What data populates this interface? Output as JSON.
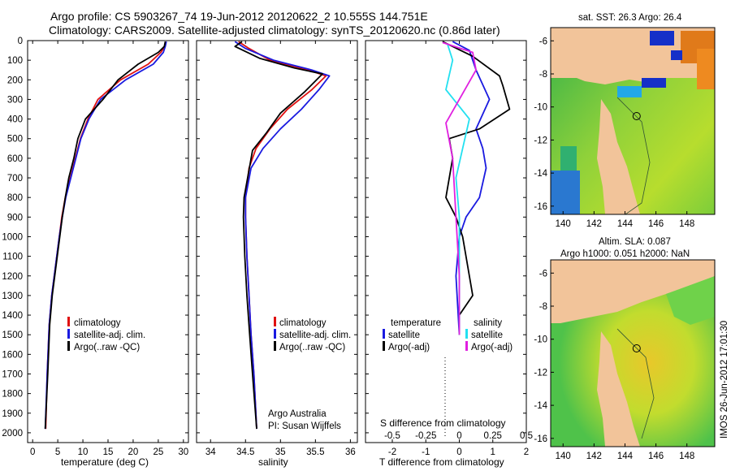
{
  "header": {
    "title_line1": "Argo profile: CS 5903267_74 19-Jun-2012 20120622_2 10.555S 144.751E",
    "title_line2": "Climatology: CARS2009. Satellite-adjusted climatology: synTS_20120620.nc (0.86d later)"
  },
  "colors": {
    "climatology": "#e01010",
    "satellite": "#1a1ae0",
    "argo": "#000000",
    "sal_satellite": "#22e0f0",
    "sal_argo": "#e020e0",
    "land": "#f2c49a"
  },
  "chart_data": [
    {
      "type": "line",
      "name": "temperature-profile",
      "xlabel": "temperature (deg C)",
      "xlim": [
        -1,
        31
      ],
      "ylim": [
        2050,
        0
      ],
      "xticks": [
        "0",
        "5",
        "10",
        "15",
        "20",
        "25",
        "30"
      ],
      "yticks": [
        "0",
        "100",
        "200",
        "300",
        "400",
        "500",
        "600",
        "700",
        "800",
        "900",
        "1000",
        "1100",
        "1200",
        "1300",
        "1400",
        "1500",
        "1600",
        "1700",
        "1800",
        "1900",
        "2000"
      ],
      "series": [
        {
          "name": "climatology",
          "color": "#e01010",
          "x": [
            26.5,
            26.3,
            25.5,
            23.0,
            17.5,
            13.0,
            11.0,
            9.5,
            8.5,
            7.5,
            6.5,
            5.8,
            5.3,
            4.8,
            4.3,
            3.8,
            3.3,
            2.9,
            2.6
          ],
          "y": [
            5,
            30,
            60,
            120,
            200,
            300,
            400,
            500,
            600,
            700,
            800,
            900,
            1000,
            1100,
            1200,
            1300,
            1450,
            1700,
            1980
          ]
        },
        {
          "name": "satellite-adj. clim.",
          "color": "#1a1ae0",
          "x": [
            26.6,
            26.4,
            26.0,
            24.0,
            18.5,
            13.5,
            11.2,
            9.6,
            8.6,
            7.6,
            6.6,
            5.9,
            5.3,
            4.8,
            4.3,
            3.8,
            3.3,
            2.9,
            2.5
          ],
          "y": [
            5,
            30,
            60,
            120,
            200,
            300,
            400,
            500,
            600,
            700,
            800,
            900,
            1000,
            1100,
            1200,
            1300,
            1450,
            1700,
            1980
          ]
        },
        {
          "name": "Argo(..raw -QC)",
          "color": "#000000",
          "x": [
            26.4,
            26.2,
            25.0,
            21.0,
            17.0,
            14.0,
            10.5,
            9.0,
            8.2,
            7.2,
            6.5,
            5.9,
            5.4,
            4.9,
            4.4,
            3.9,
            3.4,
            3.0,
            2.5
          ],
          "y": [
            5,
            30,
            60,
            120,
            200,
            300,
            400,
            500,
            600,
            700,
            800,
            900,
            1000,
            1100,
            1200,
            1300,
            1450,
            1700,
            1980
          ]
        }
      ],
      "legend": [
        "climatology",
        "satellite-adj. clim.",
        "Argo(..raw -QC)"
      ]
    },
    {
      "type": "line",
      "name": "salinity-profile",
      "xlabel": "salinity",
      "xlim": [
        33.8,
        36.1
      ],
      "ylim": [
        2050,
        0
      ],
      "xticks": [
        "34",
        "34.5",
        "35",
        "35.5",
        "36"
      ],
      "series": [
        {
          "name": "climatology",
          "color": "#e01010",
          "x": [
            34.4,
            34.55,
            34.85,
            35.4,
            35.65,
            35.45,
            35.1,
            34.85,
            34.65,
            34.55,
            34.5,
            34.5,
            34.52,
            34.55,
            34.58,
            34.62,
            34.66
          ],
          "y": [
            5,
            40,
            100,
            150,
            180,
            250,
            350,
            450,
            550,
            650,
            800,
            900,
            1100,
            1300,
            1500,
            1700,
            1980
          ]
        },
        {
          "name": "satellite-adj. clim.",
          "color": "#1a1ae0",
          "x": [
            34.35,
            34.5,
            34.9,
            35.45,
            35.7,
            35.55,
            35.3,
            35.0,
            34.75,
            34.58,
            34.5,
            34.5,
            34.52,
            34.55,
            34.58,
            34.62,
            34.66
          ],
          "y": [
            5,
            40,
            100,
            150,
            180,
            250,
            350,
            450,
            550,
            650,
            800,
            900,
            1100,
            1300,
            1500,
            1700,
            1980
          ]
        },
        {
          "name": "Argo(..raw -QC)",
          "color": "#000000",
          "x": [
            34.45,
            34.35,
            34.7,
            35.2,
            35.6,
            35.35,
            35.0,
            34.8,
            34.6,
            34.55,
            34.48,
            34.47,
            34.49,
            34.52,
            34.56,
            34.6,
            34.66
          ],
          "y": [
            5,
            30,
            90,
            140,
            170,
            260,
            370,
            470,
            560,
            660,
            800,
            900,
            1100,
            1300,
            1500,
            1700,
            1980
          ]
        }
      ],
      "legend": [
        "climatology",
        "satellite-adj. clim.",
        "Argo(..raw -QC)"
      ],
      "annotation_line1": "Argo Australia",
      "annotation_line2": "PI: Susan Wijffels"
    },
    {
      "type": "line",
      "name": "difference-profile",
      "xlabel": "T difference from climatology",
      "xlabel_top": "S difference from climatology",
      "xlim": [
        -2.8,
        2.0
      ],
      "ylim": [
        2050,
        0
      ],
      "xticks": [
        "-2",
        "-1",
        "0",
        "1",
        "2"
      ],
      "sticks": [
        "-0.5",
        "-0.25",
        "0",
        "0.25",
        "0.5"
      ],
      "series": [
        {
          "name": "temperature satellite",
          "color": "#1a1ae0",
          "x": [
            -0.2,
            0.3,
            0.5,
            0.9,
            0.5,
            0.7,
            0.8,
            0.6,
            0.2,
            0.0,
            -0.1,
            0.0
          ],
          "y": [
            5,
            50,
            150,
            300,
            450,
            550,
            650,
            800,
            900,
            1000,
            1200,
            1500
          ]
        },
        {
          "name": "temperature Argo(-adj)",
          "color": "#000000",
          "x": [
            -0.5,
            0.4,
            1.2,
            1.3,
            1.5,
            0.6,
            -0.3,
            -0.2,
            -0.4,
            -0.1,
            0.1,
            0.4,
            0.0,
            0.0
          ],
          "y": [
            5,
            80,
            180,
            230,
            350,
            450,
            500,
            600,
            800,
            900,
            1000,
            1300,
            1400,
            1500
          ]
        },
        {
          "name": "salinity satellite",
          "color": "#22e0f0",
          "x": [
            -0.35,
            -0.2,
            -0.4,
            0.3,
            0.1,
            -0.1,
            0.0,
            0.0
          ],
          "y": [
            20,
            100,
            250,
            400,
            550,
            700,
            900,
            1500
          ]
        },
        {
          "name": "salinity Argo(-adj)",
          "color": "#e020e0",
          "x": [
            -0.5,
            0.4,
            0.5,
            0.0,
            -0.4,
            -0.2,
            -0.1,
            0.0,
            0.0
          ],
          "y": [
            10,
            60,
            150,
            300,
            420,
            600,
            900,
            1200,
            1500
          ]
        }
      ],
      "legend_temperature_title": "temperature",
      "legend_salinity_title": "salinity",
      "legend_satellite": "satellite",
      "legend_argo": "Argo(-adj)"
    }
  ],
  "maps": {
    "sst_title": "sat. SST: 26.3  Argo: 26.4",
    "sla_title_line1": "Altim. SLA: 0.087",
    "sla_title_line2": "Argo h1000: 0.051  h2000: NaN",
    "lon_ticks": [
      "140",
      "142",
      "144",
      "146",
      "148"
    ],
    "lat_ticks": [
      "-6",
      "-8",
      "-10",
      "-12",
      "-14",
      "-16"
    ],
    "float_lon": 144.751,
    "float_lat": -10.555
  },
  "footer": {
    "stamp": "IMOS 26-Jun-2012 17:01:30"
  }
}
